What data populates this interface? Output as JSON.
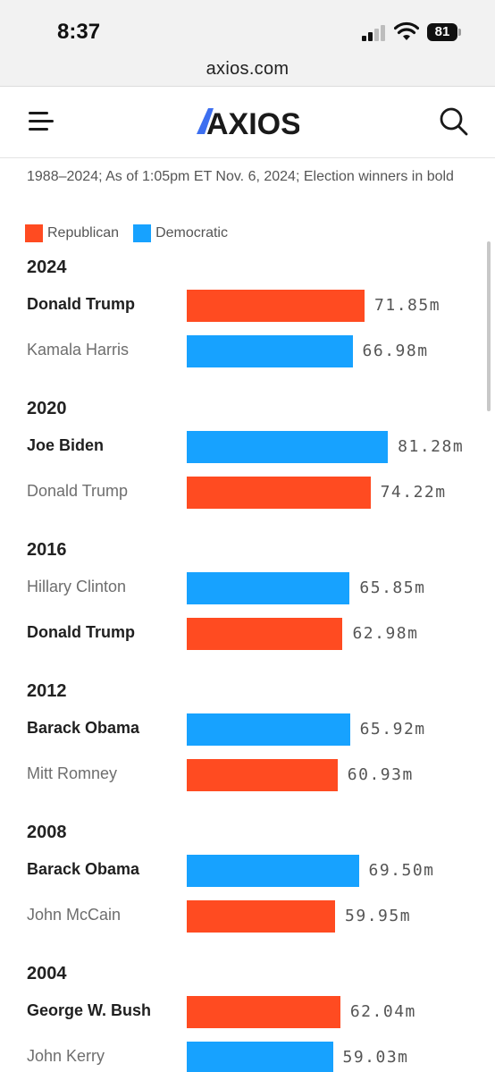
{
  "status_bar": {
    "time": "8:37",
    "battery": "81"
  },
  "browser": {
    "url": "axios.com"
  },
  "header": {
    "logo_text": "AXIOS"
  },
  "chart_data": {
    "type": "bar",
    "orientation": "horizontal",
    "note": "1988–2024; As of 1:05pm ET Nov. 6, 2024; Election winners in bold",
    "legend": [
      {
        "name": "Republican",
        "color": "#ff4b21"
      },
      {
        "name": "Democratic",
        "color": "#17a2ff"
      }
    ],
    "unit": "m",
    "groups": [
      {
        "year": "2024",
        "candidates": [
          {
            "name": "Donald Trump",
            "party": "Republican",
            "value": 71.85,
            "label": "71.85m",
            "winner": true
          },
          {
            "name": "Kamala Harris",
            "party": "Democratic",
            "value": 66.98,
            "label": "66.98m",
            "winner": false
          }
        ]
      },
      {
        "year": "2020",
        "candidates": [
          {
            "name": "Joe Biden",
            "party": "Democratic",
            "value": 81.28,
            "label": "81.28m",
            "winner": true
          },
          {
            "name": "Donald Trump",
            "party": "Republican",
            "value": 74.22,
            "label": "74.22m",
            "winner": false
          }
        ]
      },
      {
        "year": "2016",
        "candidates": [
          {
            "name": "Hillary Clinton",
            "party": "Democratic",
            "value": 65.85,
            "label": "65.85m",
            "winner": false
          },
          {
            "name": "Donald Trump",
            "party": "Republican",
            "value": 62.98,
            "label": "62.98m",
            "winner": true
          }
        ]
      },
      {
        "year": "2012",
        "candidates": [
          {
            "name": "Barack Obama",
            "party": "Democratic",
            "value": 65.92,
            "label": "65.92m",
            "winner": true
          },
          {
            "name": "Mitt Romney",
            "party": "Republican",
            "value": 60.93,
            "label": "60.93m",
            "winner": false
          }
        ]
      },
      {
        "year": "2008",
        "candidates": [
          {
            "name": "Barack Obama",
            "party": "Democratic",
            "value": 69.5,
            "label": "69.50m",
            "winner": true
          },
          {
            "name": "John McCain",
            "party": "Republican",
            "value": 59.95,
            "label": "59.95m",
            "winner": false
          }
        ]
      },
      {
        "year": "2004",
        "candidates": [
          {
            "name": "George W. Bush",
            "party": "Republican",
            "value": 62.04,
            "label": "62.04m",
            "winner": true
          },
          {
            "name": "John Kerry",
            "party": "Democratic",
            "value": 59.03,
            "label": "59.03m",
            "winner": false
          }
        ]
      }
    ]
  }
}
